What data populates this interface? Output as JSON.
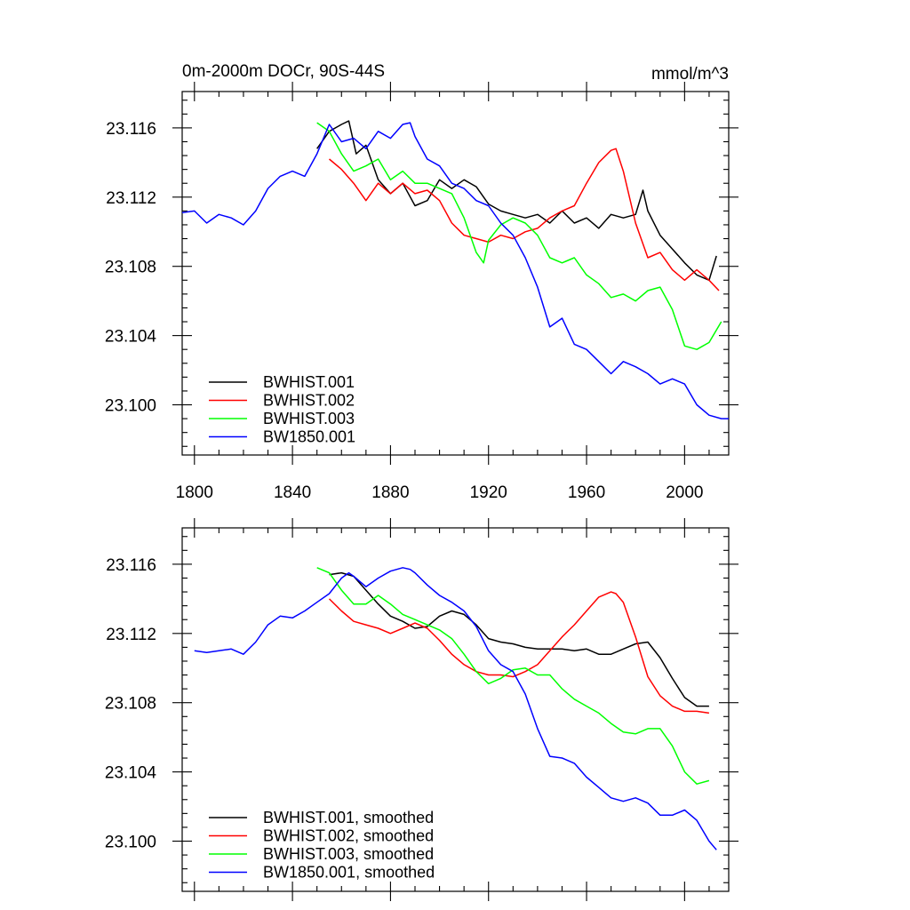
{
  "chart_data": [
    {
      "type": "line",
      "title": "0m-2000m DOCr, 90S-44S",
      "units": "mmol/m^3",
      "xlim": [
        1795,
        2018
      ],
      "ylim": [
        23.0971,
        23.1181
      ],
      "x_ticks": [
        1800,
        1840,
        1880,
        1920,
        1960,
        2000
      ],
      "x_tick_labels": [
        "1800",
        "1840",
        "1880",
        "1920",
        "1960",
        "2000"
      ],
      "y_ticks": [
        23.1,
        23.104,
        23.108,
        23.112,
        23.116
      ],
      "y_tick_labels": [
        "23.100",
        "23.104",
        "23.108",
        "23.112",
        "23.116"
      ],
      "legend_position": "bottom-left",
      "series": [
        {
          "name": "BWHIST.001",
          "color": "#000000",
          "x": [
            1850,
            1855,
            1860,
            1863,
            1866,
            1870,
            1875,
            1880,
            1885,
            1890,
            1895,
            1900,
            1905,
            1910,
            1915,
            1920,
            1925,
            1930,
            1935,
            1940,
            1945,
            1950,
            1955,
            1960,
            1965,
            1970,
            1975,
            1980,
            1983,
            1985,
            1990,
            1995,
            2000,
            2005,
            2010,
            2013
          ],
          "y": [
            23.1148,
            23.1158,
            23.1162,
            23.1164,
            23.1145,
            23.115,
            23.113,
            23.1122,
            23.1128,
            23.1115,
            23.1118,
            23.113,
            23.1125,
            23.113,
            23.1126,
            23.1116,
            23.1112,
            23.111,
            23.1108,
            23.111,
            23.1105,
            23.1112,
            23.1105,
            23.1108,
            23.1102,
            23.111,
            23.1108,
            23.111,
            23.1124,
            23.1112,
            23.1098,
            23.109,
            23.1082,
            23.1075,
            23.1072,
            23.1086
          ]
        },
        {
          "name": "BWHIST.002",
          "color": "#ff0000",
          "x": [
            1855,
            1860,
            1865,
            1870,
            1875,
            1880,
            1885,
            1890,
            1895,
            1900,
            1905,
            1910,
            1915,
            1920,
            1925,
            1930,
            1935,
            1940,
            1945,
            1950,
            1955,
            1960,
            1965,
            1970,
            1972,
            1975,
            1980,
            1985,
            1990,
            1995,
            2000,
            2005,
            2010,
            2014
          ],
          "y": [
            23.1142,
            23.1136,
            23.1128,
            23.1118,
            23.1128,
            23.1122,
            23.1128,
            23.1122,
            23.1124,
            23.1118,
            23.1105,
            23.1098,
            23.1096,
            23.1094,
            23.1098,
            23.1096,
            23.11,
            23.1102,
            23.1108,
            23.1112,
            23.1115,
            23.1128,
            23.114,
            23.1147,
            23.1148,
            23.1135,
            23.1105,
            23.1085,
            23.1088,
            23.1078,
            23.1072,
            23.1078,
            23.1072,
            23.1066
          ]
        },
        {
          "name": "BWHIST.003",
          "color": "#00ff00",
          "x": [
            1850,
            1855,
            1860,
            1865,
            1870,
            1875,
            1880,
            1885,
            1890,
            1895,
            1900,
            1905,
            1910,
            1915,
            1918,
            1920,
            1925,
            1930,
            1935,
            1940,
            1945,
            1950,
            1955,
            1960,
            1965,
            1970,
            1975,
            1980,
            1985,
            1990,
            1995,
            2000,
            2005,
            2010,
            2015
          ],
          "y": [
            23.1163,
            23.1158,
            23.1145,
            23.1135,
            23.1138,
            23.1142,
            23.113,
            23.1135,
            23.1128,
            23.1128,
            23.1125,
            23.1122,
            23.1108,
            23.1088,
            23.1082,
            23.1095,
            23.1104,
            23.1108,
            23.1105,
            23.1098,
            23.1085,
            23.1082,
            23.1085,
            23.1075,
            23.107,
            23.1062,
            23.1064,
            23.106,
            23.1066,
            23.1068,
            23.1055,
            23.1034,
            23.1032,
            23.1036,
            23.1048
          ]
        },
        {
          "name": "BW1850.001",
          "color": "#0000ff",
          "x": [
            1795,
            1800,
            1805,
            1810,
            1815,
            1820,
            1825,
            1830,
            1835,
            1840,
            1845,
            1850,
            1855,
            1860,
            1865,
            1870,
            1875,
            1880,
            1885,
            1888,
            1890,
            1895,
            1900,
            1905,
            1910,
            1915,
            1920,
            1925,
            1930,
            1935,
            1940,
            1945,
            1950,
            1955,
            1960,
            1965,
            1970,
            1975,
            1980,
            1985,
            1990,
            1995,
            2000,
            2005,
            2010,
            2015,
            2018
          ],
          "y": [
            23.1111,
            23.1112,
            23.1105,
            23.111,
            23.1108,
            23.1104,
            23.1112,
            23.1125,
            23.1132,
            23.1135,
            23.1132,
            23.1145,
            23.1162,
            23.1152,
            23.1154,
            23.1148,
            23.1158,
            23.1154,
            23.1162,
            23.1163,
            23.1155,
            23.1142,
            23.1138,
            23.1128,
            23.1125,
            23.1118,
            23.1115,
            23.1105,
            23.1098,
            23.1085,
            23.1068,
            23.1045,
            23.105,
            23.1035,
            23.1032,
            23.1025,
            23.1018,
            23.1025,
            23.1022,
            23.1018,
            23.1012,
            23.1015,
            23.1012,
            23.1,
            23.0994,
            23.0992,
            23.0992
          ]
        }
      ]
    },
    {
      "type": "line",
      "title": "",
      "units": "",
      "xlim": [
        1795,
        2018
      ],
      "ylim": [
        23.0971,
        23.1181
      ],
      "x_ticks": [
        1800,
        1840,
        1880,
        1920,
        1960,
        2000
      ],
      "x_tick_labels": [],
      "y_ticks": [
        23.1,
        23.104,
        23.108,
        23.112,
        23.116
      ],
      "y_tick_labels": [
        "23.100",
        "23.104",
        "23.108",
        "23.112",
        "23.116"
      ],
      "legend_position": "bottom-left",
      "series": [
        {
          "name": "BWHIST.001, smoothed",
          "color": "#000000",
          "x": [
            1855,
            1860,
            1865,
            1870,
            1875,
            1880,
            1885,
            1890,
            1895,
            1900,
            1905,
            1910,
            1915,
            1920,
            1925,
            1930,
            1935,
            1940,
            1945,
            1950,
            1955,
            1960,
            1965,
            1970,
            1975,
            1980,
            1985,
            1990,
            1995,
            2000,
            2005,
            2010
          ],
          "y": [
            23.1154,
            23.1155,
            23.1153,
            23.1145,
            23.1137,
            23.113,
            23.1127,
            23.1123,
            23.1124,
            23.113,
            23.1133,
            23.1131,
            23.1125,
            23.1117,
            23.1115,
            23.1114,
            23.1112,
            23.1111,
            23.1111,
            23.1111,
            23.111,
            23.1111,
            23.1108,
            23.1108,
            23.1111,
            23.1114,
            23.1115,
            23.1106,
            23.1094,
            23.1083,
            23.1078,
            23.1078
          ]
        },
        {
          "name": "BWHIST.002, smoothed",
          "color": "#ff0000",
          "x": [
            1855,
            1860,
            1865,
            1870,
            1875,
            1880,
            1885,
            1890,
            1895,
            1900,
            1905,
            1910,
            1915,
            1920,
            1925,
            1930,
            1935,
            1940,
            1945,
            1950,
            1955,
            1960,
            1965,
            1970,
            1972,
            1975,
            1980,
            1985,
            1990,
            1995,
            2000,
            2005,
            2010
          ],
          "y": [
            23.114,
            23.1133,
            23.1127,
            23.1125,
            23.1123,
            23.112,
            23.1123,
            23.1126,
            23.1123,
            23.1116,
            23.1108,
            23.1102,
            23.1098,
            23.1096,
            23.1096,
            23.1095,
            23.1098,
            23.1102,
            23.111,
            23.1118,
            23.1125,
            23.1133,
            23.1141,
            23.1144,
            23.1143,
            23.1138,
            23.1118,
            23.1095,
            23.1084,
            23.1078,
            23.1075,
            23.1075,
            23.1074
          ]
        },
        {
          "name": "BWHIST.003, smoothed",
          "color": "#00ff00",
          "x": [
            1850,
            1855,
            1860,
            1865,
            1870,
            1875,
            1880,
            1885,
            1890,
            1895,
            1900,
            1905,
            1910,
            1915,
            1920,
            1925,
            1930,
            1935,
            1940,
            1945,
            1950,
            1955,
            1960,
            1965,
            1970,
            1975,
            1980,
            1985,
            1990,
            1995,
            2000,
            2005,
            2010
          ],
          "y": [
            23.1158,
            23.1155,
            23.1145,
            23.1137,
            23.1137,
            23.1142,
            23.1137,
            23.1131,
            23.1128,
            23.1125,
            23.1122,
            23.1117,
            23.1108,
            23.1098,
            23.1091,
            23.1094,
            23.1099,
            23.11,
            23.1096,
            23.1096,
            23.1088,
            23.1082,
            23.1078,
            23.1074,
            23.1068,
            23.1063,
            23.1062,
            23.1065,
            23.1065,
            23.1055,
            23.104,
            23.1033,
            23.1035
          ]
        },
        {
          "name": "BW1850.001, smoothed",
          "color": "#0000ff",
          "x": [
            1800,
            1805,
            1810,
            1815,
            1820,
            1825,
            1830,
            1835,
            1840,
            1845,
            1850,
            1855,
            1860,
            1863,
            1865,
            1870,
            1875,
            1880,
            1885,
            1888,
            1890,
            1895,
            1900,
            1905,
            1910,
            1915,
            1920,
            1925,
            1930,
            1935,
            1940,
            1945,
            1950,
            1955,
            1960,
            1965,
            1970,
            1975,
            1980,
            1985,
            1990,
            1995,
            2000,
            2005,
            2010,
            2013
          ],
          "y": [
            23.111,
            23.1109,
            23.111,
            23.1111,
            23.1108,
            23.1115,
            23.1125,
            23.113,
            23.1129,
            23.1133,
            23.1138,
            23.1143,
            23.1152,
            23.1155,
            23.1153,
            23.1147,
            23.1152,
            23.1156,
            23.1158,
            23.1157,
            23.1155,
            23.1148,
            23.1142,
            23.1138,
            23.1133,
            23.1124,
            23.111,
            23.1102,
            23.1098,
            23.1085,
            23.1065,
            23.1049,
            23.1048,
            23.1045,
            23.1037,
            23.1031,
            23.1025,
            23.1023,
            23.1025,
            23.1022,
            23.1015,
            23.1015,
            23.1018,
            23.1012,
            23.1,
            23.0995
          ]
        }
      ]
    }
  ]
}
